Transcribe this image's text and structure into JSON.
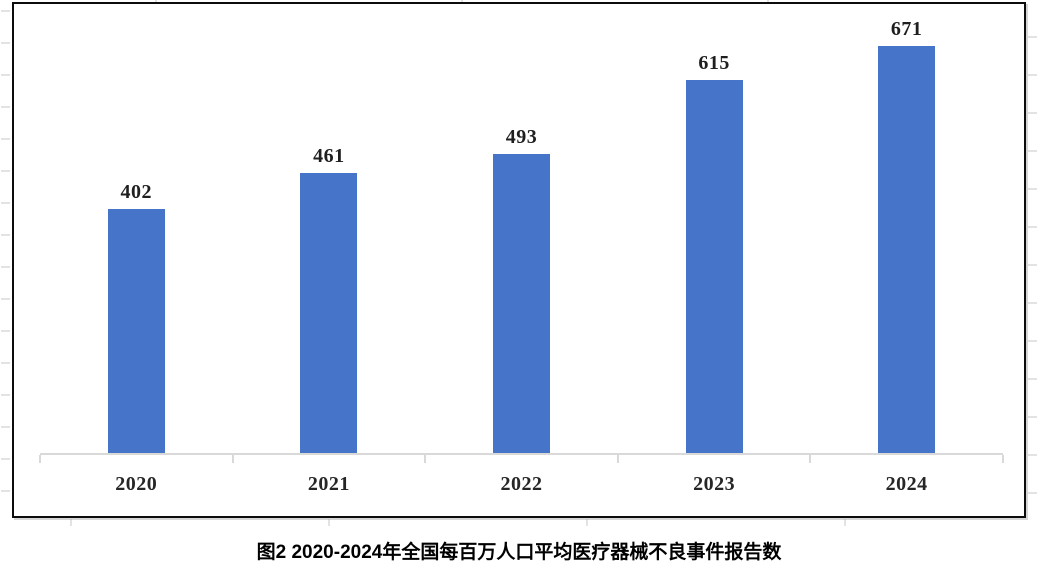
{
  "figure": {
    "caption": "图2 2020-2024年全国每百万人口平均医疗器械不良事件报告数"
  },
  "chart_data": {
    "type": "bar",
    "title": "图2 2020-2024年全国每百万人口平均医疗器械不良事件报告数",
    "categories": [
      "2020",
      "2021",
      "2022",
      "2023",
      "2024"
    ],
    "values": [
      402,
      461,
      493,
      615,
      671
    ],
    "xlabel": "",
    "ylabel": "",
    "ylim": [
      0,
      740
    ],
    "grid": false,
    "legend_position": "none",
    "data_labels": true,
    "bar_color": "#4674C8",
    "axis_color": "#D9D9D9",
    "value_label_color": "#1F1F1F",
    "tick_label_color": "#262626"
  }
}
